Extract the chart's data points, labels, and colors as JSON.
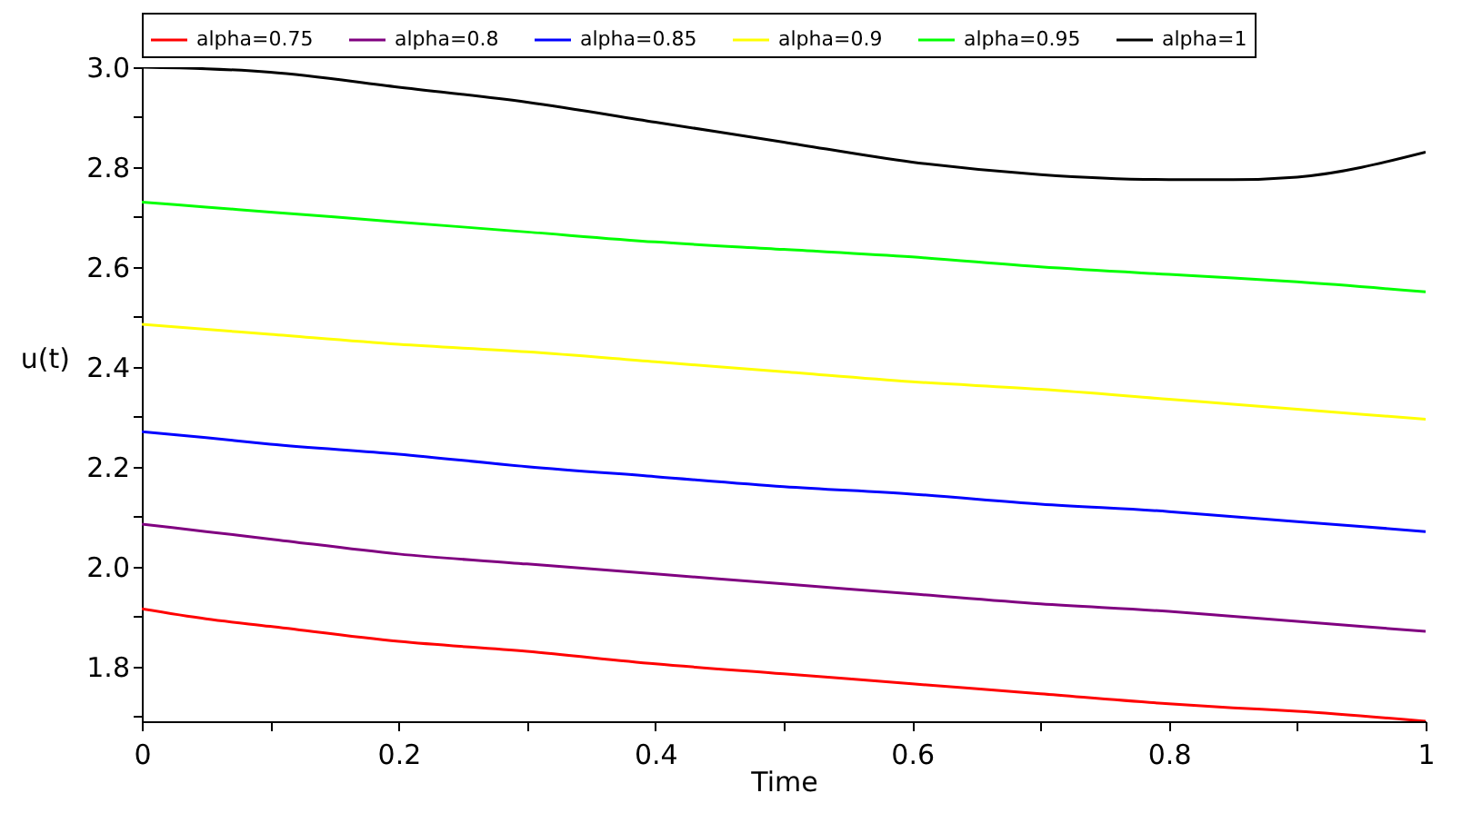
{
  "chart_data": {
    "type": "line",
    "xlabel": "Time",
    "ylabel": "u(t)",
    "x": [
      0,
      0.05,
      0.1,
      0.2,
      0.3,
      0.4,
      0.5,
      0.6,
      0.7,
      0.8,
      0.85,
      0.9,
      1.0
    ],
    "series": [
      {
        "name": "alpha=0.75",
        "color": "#ff0000",
        "values": [
          1.915,
          1.895,
          1.88,
          1.85,
          1.83,
          1.805,
          1.785,
          1.765,
          1.745,
          1.725,
          1.717,
          1.71,
          1.69
        ]
      },
      {
        "name": "alpha=0.8",
        "color": "#800080",
        "values": [
          2.085,
          2.07,
          2.055,
          2.025,
          2.005,
          1.985,
          1.965,
          1.945,
          1.925,
          1.91,
          1.9,
          1.89,
          1.87
        ]
      },
      {
        "name": "alpha=0.85",
        "color": "#0000ff",
        "values": [
          2.27,
          2.258,
          2.245,
          2.225,
          2.2,
          2.18,
          2.16,
          2.145,
          2.125,
          2.11,
          2.1,
          2.09,
          2.07
        ]
      },
      {
        "name": "alpha=0.9",
        "color": "#ffff00",
        "values": [
          2.485,
          2.475,
          2.465,
          2.445,
          2.43,
          2.41,
          2.39,
          2.37,
          2.355,
          2.335,
          2.325,
          2.315,
          2.295
        ]
      },
      {
        "name": "alpha=0.95",
        "color": "#00ff00",
        "values": [
          2.73,
          2.72,
          2.71,
          2.69,
          2.67,
          2.65,
          2.635,
          2.62,
          2.6,
          2.585,
          2.578,
          2.57,
          2.55
        ]
      },
      {
        "name": "alpha=1",
        "color": "#000000",
        "values": [
          3.0,
          2.997,
          2.99,
          2.96,
          2.93,
          2.89,
          2.85,
          2.81,
          2.785,
          2.775,
          2.775,
          2.78,
          2.83
        ]
      }
    ],
    "xlim": [
      0,
      1
    ],
    "ylim": [
      1.69,
      3.0
    ],
    "xticks": [
      0,
      {
        "value": 0.1,
        "label": null
      },
      0.2,
      {
        "value": 0.3,
        "label": null
      },
      0.4,
      {
        "value": 0.5,
        "label": null
      },
      0.6,
      {
        "value": 0.7,
        "label": null
      },
      0.8,
      {
        "value": 0.9,
        "label": null
      },
      1
    ],
    "yticks": [
      {
        "value": 1.7,
        "label": null
      },
      1.8,
      {
        "value": 1.9,
        "label": null
      },
      {
        "value": 2,
        "label": "2.0"
      },
      {
        "value": 2.1,
        "label": null
      },
      2.2,
      {
        "value": 2.3,
        "label": null
      },
      2.4,
      {
        "value": 2.5,
        "label": null
      },
      2.6,
      {
        "value": 2.7,
        "label": null
      },
      2.8,
      {
        "value": 2.9,
        "label": null
      },
      {
        "value": 3,
        "label": "3.0"
      }
    ],
    "grid": false,
    "legend": "top",
    "marker": "none",
    "line_style": "solid"
  }
}
